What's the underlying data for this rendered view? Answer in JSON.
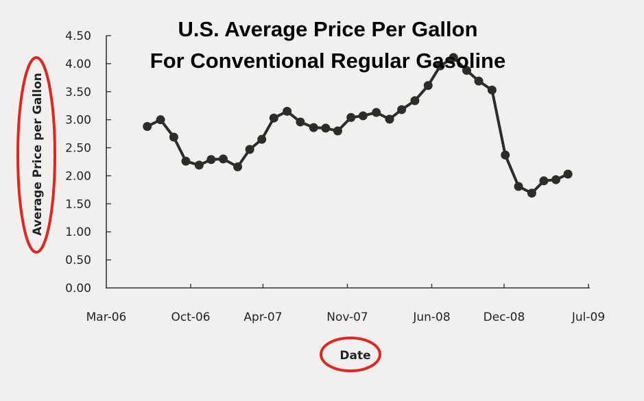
{
  "chart_data": {
    "type": "line",
    "title": [
      "U.S. Average Price Per Gallon",
      "For Conventional Regular Gasoline"
    ],
    "xlabel": "Date",
    "ylabel": "Average Price per Gallon",
    "ylim": [
      0,
      4.5
    ],
    "yticks": [
      "0.00",
      "0.50",
      "1.00",
      "1.50",
      "2.00",
      "2.50",
      "3.00",
      "3.50",
      "4.00",
      "4.50"
    ],
    "xlim_months_from_start": [
      0,
      40
    ],
    "xticks": [
      {
        "label": "Mar-06",
        "month": 0
      },
      {
        "label": "Oct-06",
        "month": 7
      },
      {
        "label": "Apr-07",
        "month": 13
      },
      {
        "label": "Nov-07",
        "month": 20
      },
      {
        "label": "Jun-08",
        "month": 27
      },
      {
        "label": "Dec-08",
        "month": 33
      },
      {
        "label": "Jul-09",
        "month": 40
      }
    ],
    "grid": false,
    "legend": "none",
    "series": [
      {
        "name": "Average Price per Gallon",
        "color": "#2e2c28",
        "marker": "circle",
        "points": [
          {
            "month": 3.4,
            "value": 2.88
          },
          {
            "month": 4.5,
            "value": 3.0
          },
          {
            "month": 5.6,
            "value": 2.69
          },
          {
            "month": 6.6,
            "value": 2.26
          },
          {
            "month": 7.7,
            "value": 2.19
          },
          {
            "month": 8.7,
            "value": 2.29
          },
          {
            "month": 9.7,
            "value": 2.3
          },
          {
            "month": 10.9,
            "value": 2.16
          },
          {
            "month": 11.9,
            "value": 2.47
          },
          {
            "month": 12.9,
            "value": 2.65
          },
          {
            "month": 13.9,
            "value": 3.03
          },
          {
            "month": 15.0,
            "value": 3.15
          },
          {
            "month": 16.1,
            "value": 2.96
          },
          {
            "month": 17.2,
            "value": 2.86
          },
          {
            "month": 18.2,
            "value": 2.85
          },
          {
            "month": 19.2,
            "value": 2.8
          },
          {
            "month": 20.3,
            "value": 3.04
          },
          {
            "month": 21.3,
            "value": 3.07
          },
          {
            "month": 22.4,
            "value": 3.13
          },
          {
            "month": 23.5,
            "value": 3.01
          },
          {
            "month": 24.5,
            "value": 3.18
          },
          {
            "month": 25.6,
            "value": 3.34
          },
          {
            "month": 26.7,
            "value": 3.61
          },
          {
            "month": 27.7,
            "value": 3.96
          },
          {
            "month": 28.8,
            "value": 4.11
          },
          {
            "month": 29.9,
            "value": 3.88
          },
          {
            "month": 30.9,
            "value": 3.69
          },
          {
            "month": 32.0,
            "value": 3.53
          },
          {
            "month": 33.1,
            "value": 2.37
          },
          {
            "month": 34.2,
            "value": 1.81
          },
          {
            "month": 35.3,
            "value": 1.69
          },
          {
            "month": 36.3,
            "value": 1.91
          },
          {
            "month": 37.3,
            "value": 1.93
          },
          {
            "month": 38.3,
            "value": 2.03
          }
        ]
      }
    ],
    "annotations": [
      {
        "type": "ellipse-highlight",
        "target": "ylabel",
        "color": "#e0261f"
      },
      {
        "type": "ellipse-highlight",
        "target": "xlabel",
        "color": "#e0261f"
      }
    ]
  }
}
